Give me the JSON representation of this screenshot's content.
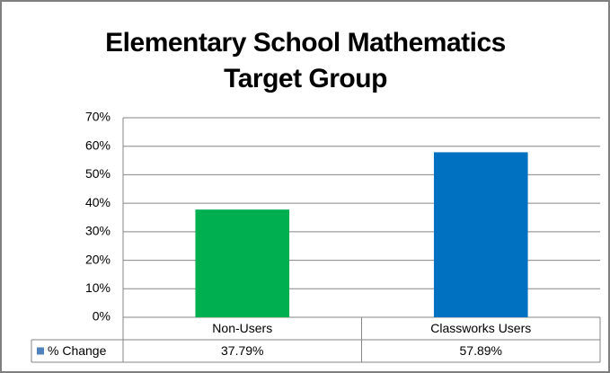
{
  "chart_data": {
    "type": "bar",
    "title": "Elementary School Mathematics Target Group",
    "categories": [
      "Non-Users",
      "Classworks Users"
    ],
    "series": [
      {
        "name": "% Change",
        "color": "#4f81bd",
        "colors": [
          "#00b050",
          "#0070c0"
        ],
        "values": [
          37.79,
          57.89
        ],
        "value_labels": [
          "37.79%",
          "57.89%"
        ]
      }
    ],
    "ylim": [
      0,
      70
    ],
    "yticks": [
      {
        "value": 0,
        "label": "0%"
      },
      {
        "value": 10,
        "label": "10%"
      },
      {
        "value": 20,
        "label": "20%"
      },
      {
        "value": 30,
        "label": "30%"
      },
      {
        "value": 40,
        "label": "40%"
      },
      {
        "value": 50,
        "label": "50%"
      },
      {
        "value": 60,
        "label": "60%"
      },
      {
        "value": 70,
        "label": "70%"
      }
    ],
    "grid": true,
    "data_table": true
  }
}
